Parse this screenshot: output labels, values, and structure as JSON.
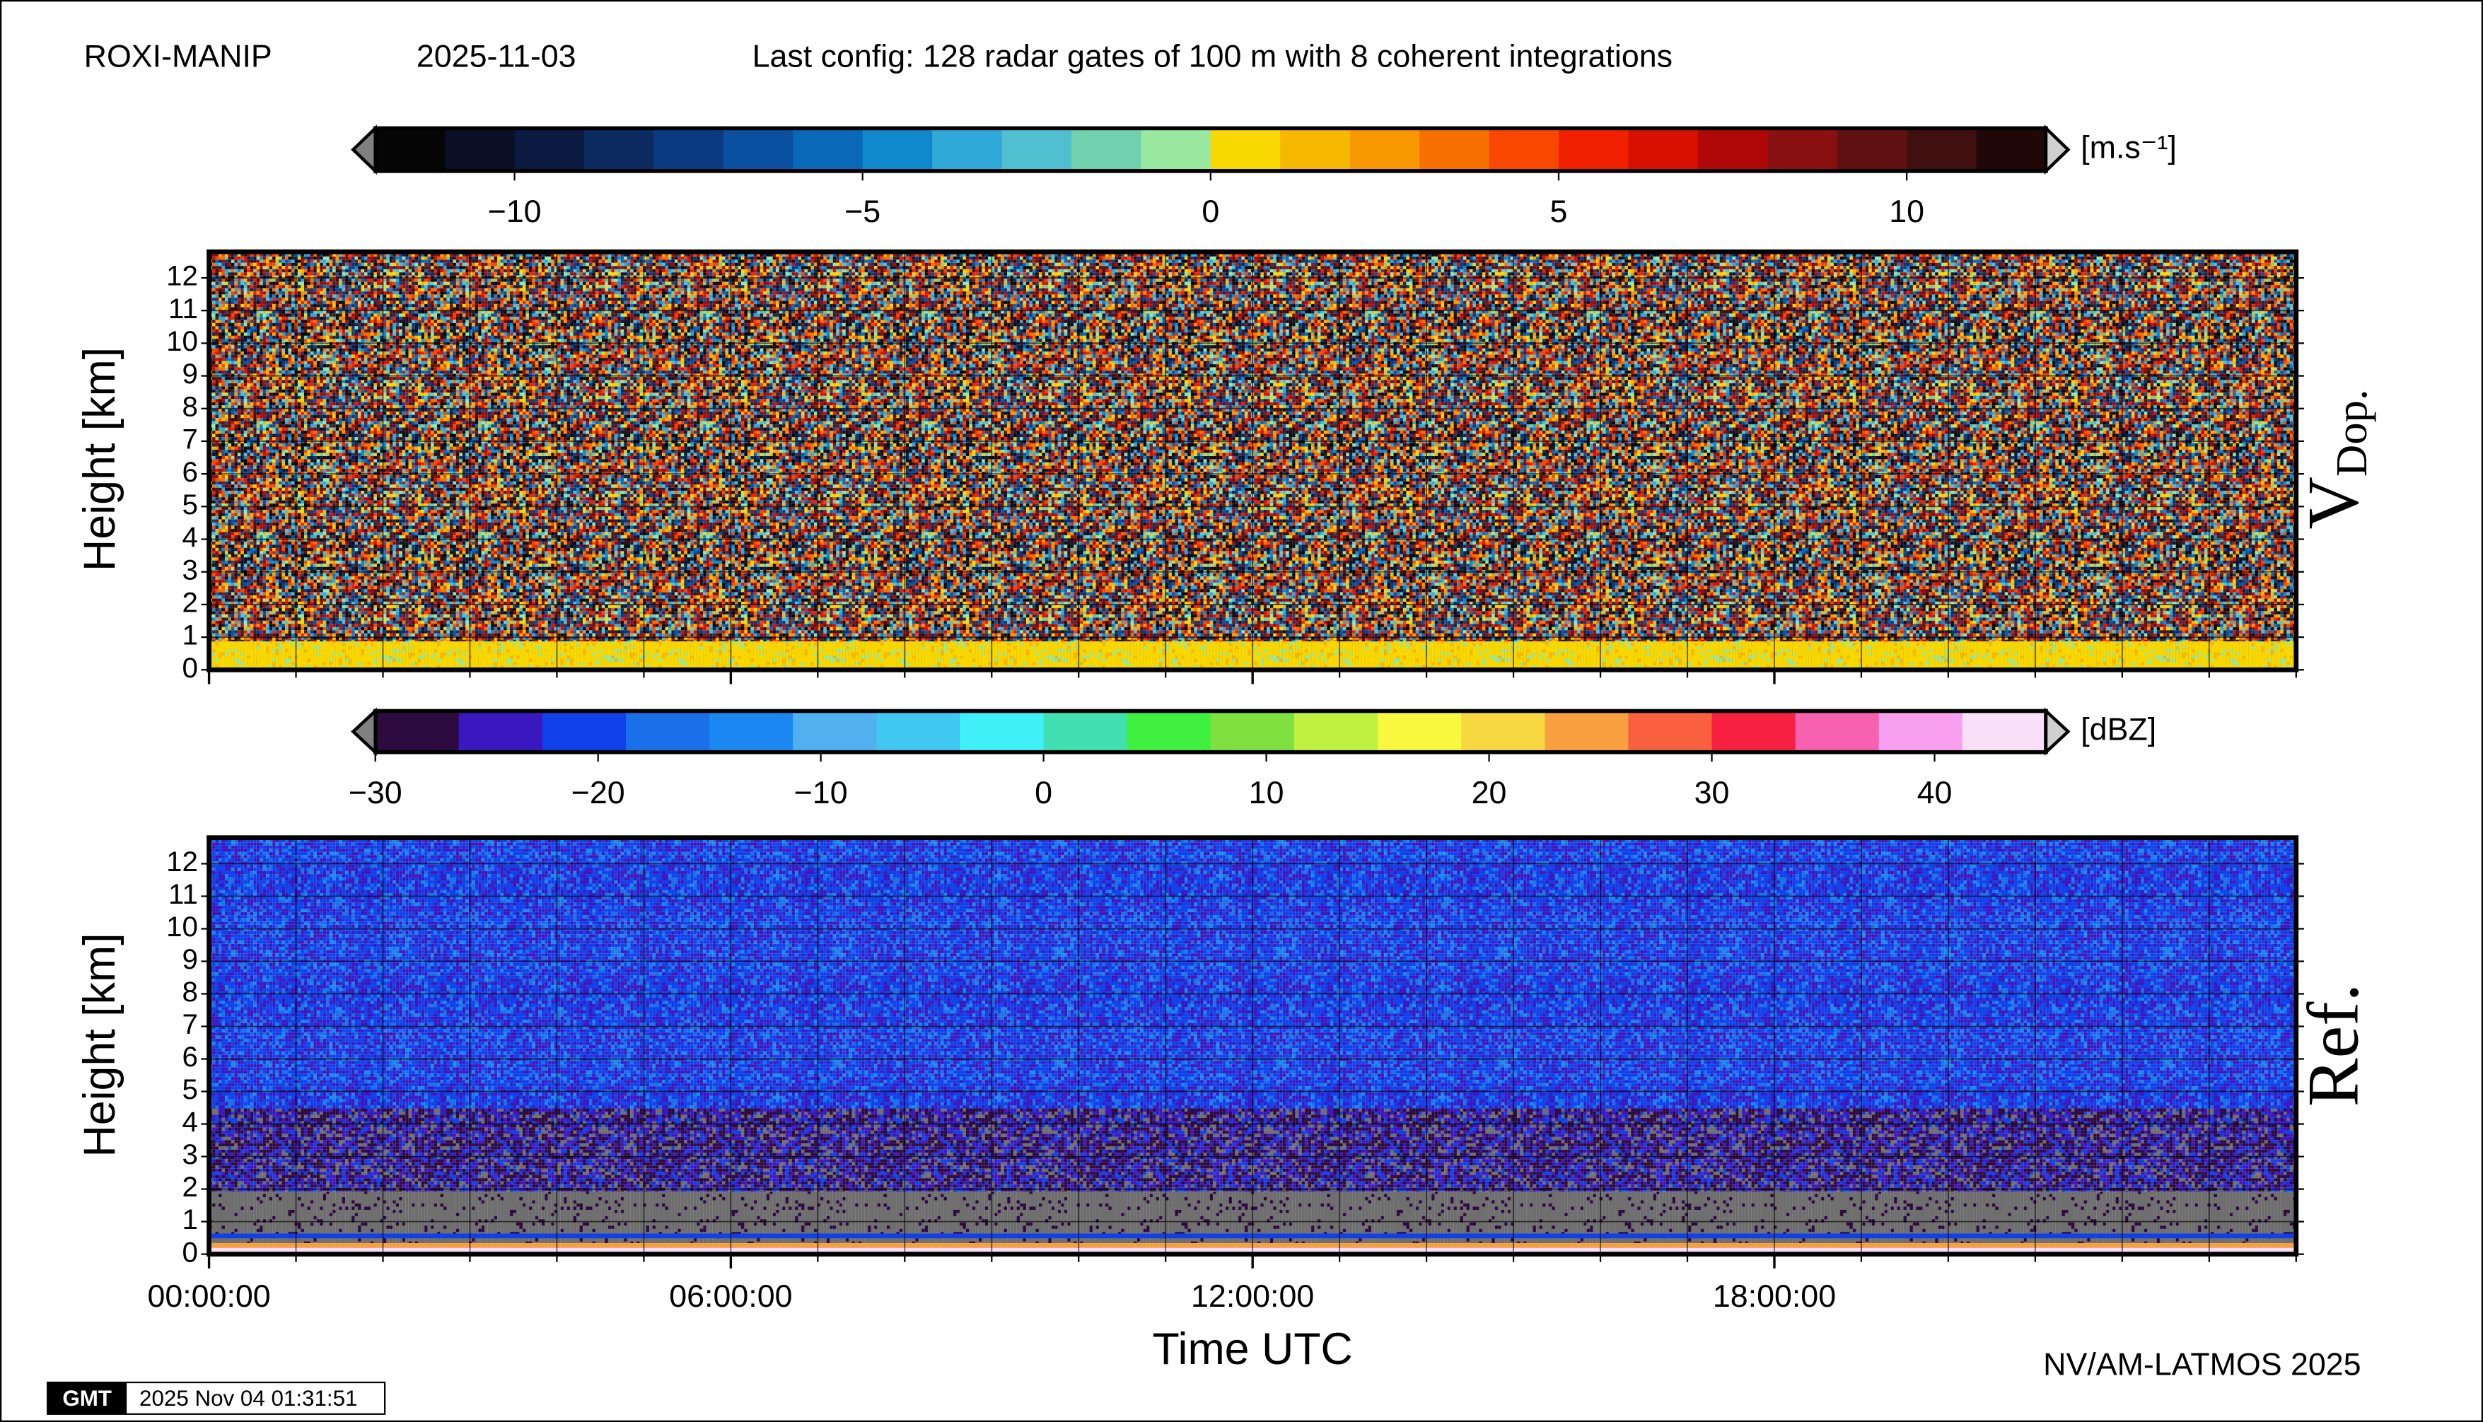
{
  "header": {
    "station": "ROXI-MANIP",
    "date": "2025-11-03",
    "config": "Last config: 128 radar gates of 100 m with 8 coherent integrations"
  },
  "chart_data": [
    {
      "type": "heatmap",
      "label": "V",
      "label_subscript": "Dop.",
      "ylabel": "Height [km]",
      "ylim": [
        0,
        12.8
      ],
      "yticks": [
        0,
        1,
        2,
        3,
        4,
        5,
        6,
        7,
        8,
        9,
        10,
        11,
        12
      ],
      "xlim": [
        0,
        24
      ],
      "grid": true,
      "colorbar": {
        "unit": "[m.s⁻¹]",
        "lim": [
          -12,
          12
        ],
        "ticks": [
          {
            "value": -10,
            "label": "−10"
          },
          {
            "value": -5,
            "label": "−5"
          },
          0,
          5,
          10
        ],
        "colors": [
          "#050505",
          "#0a0f25",
          "#0a1a40",
          "#0a2a60",
          "#0a3a80",
          "#0a50a0",
          "#0a68b8",
          "#1088cc",
          "#30a8d8",
          "#50c0d0",
          "#70d0b0",
          "#98e8a0",
          "#f8d800",
          "#f8b800",
          "#f89800",
          "#f87000",
          "#f84800",
          "#f02000",
          "#d81000",
          "#b00808",
          "#881010",
          "#601010",
          "#401010",
          "#200808"
        ]
      }
    },
    {
      "type": "heatmap",
      "label": "Ref.",
      "ylabel": "Height [km]",
      "xlabel": "Time UTC",
      "ylim": [
        0,
        12.8
      ],
      "yticks": [
        0,
        1,
        2,
        3,
        4,
        5,
        6,
        7,
        8,
        9,
        10,
        11,
        12
      ],
      "xlim": [
        0,
        24
      ],
      "grid": true,
      "xticks": [
        {
          "value": 0,
          "label": "00:00:00"
        },
        {
          "value": 6,
          "label": "06:00:00"
        },
        {
          "value": 12,
          "label": "12:00:00"
        },
        {
          "value": 18,
          "label": "18:00:00"
        }
      ],
      "xminorticks": [
        0,
        1,
        2,
        3,
        4,
        5,
        6,
        7,
        8,
        9,
        10,
        11,
        12,
        13,
        14,
        15,
        16,
        17,
        18,
        19,
        20,
        21,
        22,
        23,
        24
      ],
      "colorbar": {
        "unit": "[dBZ]",
        "lim": [
          -30,
          45
        ],
        "ticks": [
          {
            "value": -30,
            "label": "−30"
          },
          {
            "value": -20,
            "label": "−20"
          },
          {
            "value": -10,
            "label": "−10"
          },
          0,
          10,
          20,
          30,
          40
        ],
        "colors": [
          "#2d0a40",
          "#3a18c0",
          "#1040e8",
          "#1a70e8",
          "#1a88f0",
          "#50b0f0",
          "#40c8f0",
          "#40f0f8",
          "#40e0b0",
          "#40f040",
          "#80e040",
          "#c0f040",
          "#f8f840",
          "#f8d840",
          "#f8a040",
          "#f86040",
          "#f82040",
          "#f860b0",
          "#f8a0f0",
          "#f8e0f8"
        ]
      }
    }
  ],
  "footer": {
    "credit": "NV/AM-LATMOS 2025",
    "logo": "GMT",
    "timestamp": "2025 Nov 04 01:31:51"
  }
}
